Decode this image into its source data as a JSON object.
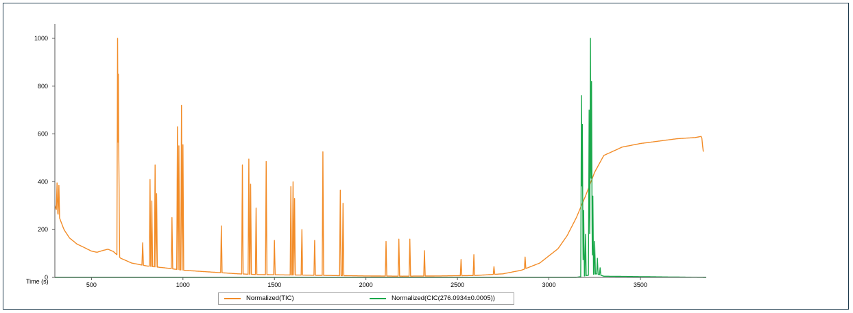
{
  "chart_data": {
    "type": "line",
    "xlabel": "Time (s)",
    "x_ticks": [
      500,
      1000,
      1500,
      2000,
      2500,
      3000,
      3500
    ],
    "y_ticks": [
      0,
      200,
      400,
      600,
      800,
      1000
    ],
    "xlim": [
      300,
      3860
    ],
    "ylim": [
      0,
      1060
    ],
    "grid": false,
    "legend_position": "bottom-center",
    "series": [
      {
        "name": "Normalized(TIC)",
        "color": "#f28c28",
        "baseline": [
          [
            300,
            300
          ],
          [
            320,
            260
          ],
          [
            350,
            200
          ],
          [
            380,
            165
          ],
          [
            420,
            140
          ],
          [
            460,
            125
          ],
          [
            500,
            110
          ],
          [
            530,
            105
          ],
          [
            560,
            112
          ],
          [
            590,
            118
          ],
          [
            620,
            108
          ],
          [
            660,
            80
          ],
          [
            720,
            60
          ],
          [
            800,
            48
          ],
          [
            900,
            40
          ],
          [
            1000,
            30
          ],
          [
            1100,
            25
          ],
          [
            1200,
            20
          ],
          [
            1300,
            15
          ],
          [
            1400,
            12
          ],
          [
            1600,
            10
          ],
          [
            1800,
            8
          ],
          [
            2000,
            6
          ],
          [
            2200,
            5
          ],
          [
            2400,
            6
          ],
          [
            2600,
            8
          ],
          [
            2750,
            15
          ],
          [
            2850,
            30
          ],
          [
            2950,
            60
          ],
          [
            3050,
            120
          ],
          [
            3100,
            175
          ],
          [
            3150,
            250
          ],
          [
            3200,
            340
          ],
          [
            3250,
            440
          ],
          [
            3300,
            510
          ],
          [
            3400,
            545
          ],
          [
            3500,
            560
          ],
          [
            3600,
            570
          ],
          [
            3700,
            580
          ],
          [
            3800,
            585
          ],
          [
            3835,
            590
          ],
          [
            3840,
            550
          ],
          [
            3845,
            520
          ]
        ],
        "peaks": [
          [
            312,
            395
          ],
          [
            322,
            385
          ],
          [
            643,
            1000
          ],
          [
            647,
            850
          ],
          [
            650,
            470
          ],
          [
            780,
            145
          ],
          [
            820,
            410
          ],
          [
            830,
            320
          ],
          [
            848,
            470
          ],
          [
            856,
            350
          ],
          [
            940,
            250
          ],
          [
            970,
            630
          ],
          [
            978,
            550
          ],
          [
            992,
            720
          ],
          [
            1000,
            555
          ],
          [
            1210,
            215
          ],
          [
            1325,
            470
          ],
          [
            1360,
            495
          ],
          [
            1370,
            390
          ],
          [
            1400,
            290
          ],
          [
            1455,
            485
          ],
          [
            1500,
            155
          ],
          [
            1590,
            380
          ],
          [
            1602,
            400
          ],
          [
            1610,
            330
          ],
          [
            1650,
            200
          ],
          [
            1720,
            155
          ],
          [
            1765,
            525
          ],
          [
            1860,
            365
          ],
          [
            1875,
            310
          ],
          [
            2110,
            150
          ],
          [
            2180,
            160
          ],
          [
            2240,
            160
          ],
          [
            2320,
            112
          ],
          [
            2520,
            75
          ],
          [
            2590,
            95
          ],
          [
            2700,
            45
          ],
          [
            2870,
            85
          ]
        ]
      },
      {
        "name": "Normalized(CIC(276.0934±0.0005))",
        "color": "#1aa84a",
        "baseline": [
          [
            300,
            0
          ],
          [
            3150,
            0
          ],
          [
            3260,
            15
          ],
          [
            3300,
            5
          ],
          [
            3860,
            0
          ]
        ],
        "peaks": [
          [
            3178,
            760
          ],
          [
            3183,
            640
          ],
          [
            3190,
            280
          ],
          [
            3200,
            180
          ],
          [
            3220,
            700
          ],
          [
            3227,
            1000
          ],
          [
            3233,
            820
          ],
          [
            3240,
            340
          ],
          [
            3250,
            150
          ],
          [
            3265,
            80
          ],
          [
            3280,
            40
          ]
        ]
      }
    ]
  }
}
